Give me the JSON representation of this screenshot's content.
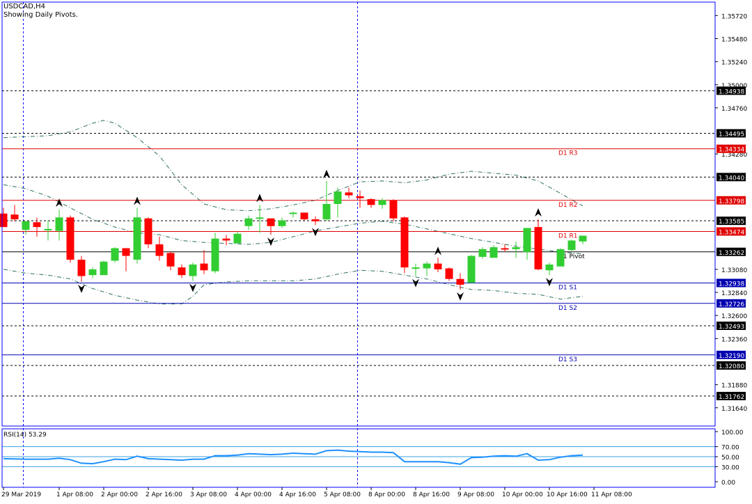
{
  "header": {
    "symbol": "USDCAD,H4",
    "subtitle": "Showing Daily Pivots."
  },
  "colors": {
    "bull": "#32cd32",
    "bear": "#ff0000",
    "wick": "#000000",
    "frame": "#0000ff",
    "resistance": "#e00000",
    "support": "#0000b0",
    "pivot": "#000000",
    "band": "#2f6f5f",
    "rsi": "#1e90ff",
    "rsi_levels": "#3aa0e0"
  },
  "price_axis": {
    "min": 1.3145,
    "max": 1.3586,
    "ticks": [
      "1.35720",
      "1.35480",
      "1.35240",
      "1.35000",
      "1.34760",
      "1.34280",
      "1.33080",
      "1.32840",
      "1.32600",
      "1.32360",
      "1.31880",
      "1.31640"
    ]
  },
  "time_axis": {
    "labels": [
      {
        "text": "29 Mar 2019",
        "bar": 0
      },
      {
        "text": "1 Apr 08:00",
        "bar": 5
      },
      {
        "text": "2 Apr 00:00",
        "bar": 9
      },
      {
        "text": "2 Apr 16:00",
        "bar": 13
      },
      {
        "text": "3 Apr 08:00",
        "bar": 17
      },
      {
        "text": "4 Apr 00:00",
        "bar": 21
      },
      {
        "text": "4 Apr 16:00",
        "bar": 25
      },
      {
        "text": "5 Apr 08:00",
        "bar": 29
      },
      {
        "text": "8 Apr 00:00",
        "bar": 33
      },
      {
        "text": "8 Apr 16:00",
        "bar": 37
      },
      {
        "text": "9 Apr 08:00",
        "bar": 41
      },
      {
        "text": "10 Apr 00:00",
        "bar": 45
      },
      {
        "text": "10 Apr 16:00",
        "bar": 49
      },
      {
        "text": "11 Apr 08:00",
        "bar": 53
      }
    ]
  },
  "chart_data": {
    "type": "candlestick",
    "title": "USDCAD,H4",
    "subtitle": "Showing Daily Pivots.",
    "ylim": [
      1.3145,
      1.3586
    ],
    "candles": [
      {
        "o": 1.3366,
        "h": 1.3372,
        "l": 1.3352,
        "c": 1.3352
      },
      {
        "o": 1.3365,
        "h": 1.3375,
        "l": 1.3358,
        "c": 1.336
      },
      {
        "o": 1.3349,
        "h": 1.3357,
        "l": 1.3344,
        "c": 1.3358
      },
      {
        "o": 1.3357,
        "h": 1.3362,
        "l": 1.3342,
        "c": 1.3352
      },
      {
        "o": 1.335,
        "h": 1.3359,
        "l": 1.3338,
        "c": 1.335
      },
      {
        "o": 1.3348,
        "h": 1.337,
        "l": 1.3338,
        "c": 1.3362
      },
      {
        "o": 1.3362,
        "h": 1.3364,
        "l": 1.3315,
        "c": 1.3318
      },
      {
        "o": 1.3318,
        "h": 1.3322,
        "l": 1.3295,
        "c": 1.3301
      },
      {
        "o": 1.3302,
        "h": 1.331,
        "l": 1.3299,
        "c": 1.3308
      },
      {
        "o": 1.3302,
        "h": 1.3317,
        "l": 1.3302,
        "c": 1.3316
      },
      {
        "o": 1.3317,
        "h": 1.3331,
        "l": 1.3315,
        "c": 1.333
      },
      {
        "o": 1.333,
        "h": 1.333,
        "l": 1.3306,
        "c": 1.3322
      },
      {
        "o": 1.3318,
        "h": 1.3372,
        "l": 1.3314,
        "c": 1.3362
      },
      {
        "o": 1.3361,
        "h": 1.3362,
        "l": 1.333,
        "c": 1.3334
      },
      {
        "o": 1.3334,
        "h": 1.3342,
        "l": 1.3317,
        "c": 1.3322
      },
      {
        "o": 1.3325,
        "h": 1.3326,
        "l": 1.3307,
        "c": 1.3311
      },
      {
        "o": 1.331,
        "h": 1.3313,
        "l": 1.3299,
        "c": 1.3302
      },
      {
        "o": 1.3301,
        "h": 1.3315,
        "l": 1.3296,
        "c": 1.3313
      },
      {
        "o": 1.3314,
        "h": 1.3328,
        "l": 1.3303,
        "c": 1.3307
      },
      {
        "o": 1.3306,
        "h": 1.3346,
        "l": 1.3304,
        "c": 1.334
      },
      {
        "o": 1.334,
        "h": 1.3344,
        "l": 1.3333,
        "c": 1.3338
      },
      {
        "o": 1.3335,
        "h": 1.3347,
        "l": 1.3335,
        "c": 1.3345
      },
      {
        "o": 1.3353,
        "h": 1.3364,
        "l": 1.3349,
        "c": 1.3361
      },
      {
        "o": 1.3362,
        "h": 1.3375,
        "l": 1.3346,
        "c": 1.3362
      },
      {
        "o": 1.3361,
        "h": 1.336,
        "l": 1.3344,
        "c": 1.3353
      },
      {
        "o": 1.3353,
        "h": 1.3362,
        "l": 1.3351,
        "c": 1.3359
      },
      {
        "o": 1.3366,
        "h": 1.3368,
        "l": 1.3362,
        "c": 1.3367
      },
      {
        "o": 1.3367,
        "h": 1.3367,
        "l": 1.3359,
        "c": 1.336
      },
      {
        "o": 1.336,
        "h": 1.3363,
        "l": 1.3354,
        "c": 1.3358
      },
      {
        "o": 1.336,
        "h": 1.34,
        "l": 1.3358,
        "c": 1.3376
      },
      {
        "o": 1.3376,
        "h": 1.3393,
        "l": 1.3362,
        "c": 1.3389
      },
      {
        "o": 1.3388,
        "h": 1.3393,
        "l": 1.3382,
        "c": 1.3385
      },
      {
        "o": 1.3384,
        "h": 1.339,
        "l": 1.3372,
        "c": 1.3382
      },
      {
        "o": 1.3381,
        "h": 1.3382,
        "l": 1.3372,
        "c": 1.3375
      },
      {
        "o": 1.3375,
        "h": 1.3382,
        "l": 1.3371,
        "c": 1.338
      },
      {
        "o": 1.338,
        "h": 1.3381,
        "l": 1.3358,
        "c": 1.3361
      },
      {
        "o": 1.3362,
        "h": 1.3363,
        "l": 1.3304,
        "c": 1.331
      },
      {
        "o": 1.3309,
        "h": 1.3314,
        "l": 1.3301,
        "c": 1.331
      },
      {
        "o": 1.3309,
        "h": 1.3316,
        "l": 1.3301,
        "c": 1.3314
      },
      {
        "o": 1.3314,
        "h": 1.332,
        "l": 1.3305,
        "c": 1.3308
      },
      {
        "o": 1.3309,
        "h": 1.331,
        "l": 1.3296,
        "c": 1.3298
      },
      {
        "o": 1.3298,
        "h": 1.3304,
        "l": 1.3287,
        "c": 1.3292
      },
      {
        "o": 1.3294,
        "h": 1.3323,
        "l": 1.3294,
        "c": 1.3322
      },
      {
        "o": 1.3321,
        "h": 1.3331,
        "l": 1.3319,
        "c": 1.3329
      },
      {
        "o": 1.332,
        "h": 1.3333,
        "l": 1.332,
        "c": 1.3331
      },
      {
        "o": 1.333,
        "h": 1.3334,
        "l": 1.3326,
        "c": 1.3329
      },
      {
        "o": 1.3329,
        "h": 1.3337,
        "l": 1.332,
        "c": 1.3331
      },
      {
        "o": 1.3326,
        "h": 1.3351,
        "l": 1.3318,
        "c": 1.3351
      },
      {
        "o": 1.3352,
        "h": 1.336,
        "l": 1.3307,
        "c": 1.3308
      },
      {
        "o": 1.3307,
        "h": 1.3315,
        "l": 1.3302,
        "c": 1.3313
      },
      {
        "o": 1.3311,
        "h": 1.333,
        "l": 1.3311,
        "c": 1.3329
      },
      {
        "o": 1.3328,
        "h": 1.3339,
        "l": 1.3327,
        "c": 1.3338
      },
      {
        "o": 1.3337,
        "h": 1.3343,
        "l": 1.3334,
        "c": 1.3343
      }
    ],
    "bands": {
      "upper": [
        [
          0,
          1.3445
        ],
        [
          4,
          1.3447
        ],
        [
          6,
          1.3451
        ],
        [
          8,
          1.346
        ],
        [
          9,
          1.3463
        ],
        [
          10,
          1.346
        ],
        [
          12,
          1.3445
        ],
        [
          14,
          1.3426
        ],
        [
          16,
          1.3396
        ],
        [
          18,
          1.3376
        ],
        [
          20,
          1.337
        ],
        [
          22,
          1.3369
        ],
        [
          24,
          1.3371
        ],
        [
          26,
          1.3375
        ],
        [
          28,
          1.338
        ],
        [
          30,
          1.339
        ],
        [
          32,
          1.3399
        ],
        [
          34,
          1.34
        ],
        [
          36,
          1.3398
        ],
        [
          38,
          1.3401
        ],
        [
          40,
          1.3407
        ],
        [
          42,
          1.341
        ],
        [
          44,
          1.3408
        ],
        [
          46,
          1.3406
        ],
        [
          48,
          1.34
        ],
        [
          50,
          1.3387
        ],
        [
          52,
          1.3374
        ]
      ],
      "lower": [
        [
          0,
          1.3308
        ],
        [
          2,
          1.3304
        ],
        [
          4,
          1.3302
        ],
        [
          6,
          1.3298
        ],
        [
          8,
          1.3288
        ],
        [
          10,
          1.3281
        ],
        [
          12,
          1.3276
        ],
        [
          14,
          1.3272
        ],
        [
          16,
          1.3272
        ],
        [
          17,
          1.328
        ],
        [
          18,
          1.3292
        ],
        [
          20,
          1.3295
        ],
        [
          22,
          1.3296
        ],
        [
          24,
          1.3296
        ],
        [
          26,
          1.3296
        ],
        [
          28,
          1.3298
        ],
        [
          30,
          1.3303
        ],
        [
          32,
          1.3307
        ],
        [
          34,
          1.3306
        ],
        [
          36,
          1.3302
        ],
        [
          38,
          1.3298
        ],
        [
          40,
          1.3292
        ],
        [
          42,
          1.3287
        ],
        [
          44,
          1.3286
        ],
        [
          46,
          1.3283
        ],
        [
          48,
          1.3282
        ],
        [
          50,
          1.3277
        ],
        [
          52,
          1.328
        ]
      ],
      "middle": [
        [
          0,
          1.3396
        ],
        [
          2,
          1.3392
        ],
        [
          4,
          1.3384
        ],
        [
          6,
          1.3372
        ],
        [
          8,
          1.336
        ],
        [
          10,
          1.3352
        ],
        [
          12,
          1.3346
        ],
        [
          14,
          1.3344
        ],
        [
          16,
          1.3338
        ],
        [
          18,
          1.3336
        ],
        [
          20,
          1.3335
        ],
        [
          22,
          1.3334
        ],
        [
          24,
          1.3336
        ],
        [
          26,
          1.3342
        ],
        [
          28,
          1.3348
        ],
        [
          30,
          1.3352
        ],
        [
          32,
          1.3356
        ],
        [
          34,
          1.3358
        ],
        [
          36,
          1.3355
        ],
        [
          38,
          1.335
        ],
        [
          40,
          1.3345
        ],
        [
          42,
          1.334
        ],
        [
          44,
          1.3336
        ],
        [
          46,
          1.3332
        ],
        [
          48,
          1.3329
        ],
        [
          50,
          1.3326
        ],
        [
          52,
          1.3324
        ]
      ]
    },
    "fractals": [
      {
        "bar": 5,
        "type": "up"
      },
      {
        "bar": 7,
        "type": "down"
      },
      {
        "bar": 12,
        "type": "up"
      },
      {
        "bar": 17,
        "type": "down"
      },
      {
        "bar": 23,
        "type": "up"
      },
      {
        "bar": 24,
        "type": "down"
      },
      {
        "bar": 28,
        "type": "down"
      },
      {
        "bar": 29,
        "type": "up"
      },
      {
        "bar": 37,
        "type": "down"
      },
      {
        "bar": 39,
        "type": "up"
      },
      {
        "bar": 41,
        "type": "down"
      },
      {
        "bar": 48,
        "type": "up"
      },
      {
        "bar": 49,
        "type": "down"
      }
    ],
    "pivot_lines": [
      {
        "label": "D1 R3",
        "value": "1.34334",
        "kind": "resistance"
      },
      {
        "label": "D1 R2",
        "value": "1.33798",
        "kind": "resistance"
      },
      {
        "label": "D1 R1",
        "value": "1.33474",
        "kind": "resistance"
      },
      {
        "label": "D1 Pivot",
        "value": "1.33262",
        "kind": "pivot"
      },
      {
        "label": "D1 S1",
        "value": "1.32938",
        "kind": "support"
      },
      {
        "label": "D1 S2",
        "value": "1.32726",
        "kind": "support"
      },
      {
        "label": "D1 S3",
        "value": "1.32190",
        "kind": "support"
      }
    ],
    "dashed_levels": [
      "1.34938",
      "1.34495",
      "1.34040",
      "1.33585",
      "1.32493",
      "1.32080",
      "1.31762"
    ],
    "rsi": {
      "title": "RSI(14) 53.29",
      "ticks": [
        "100.00",
        "70.00",
        "50.00",
        "30.00",
        "0.00"
      ],
      "levels": [
        70,
        50,
        30
      ],
      "values": [
        [
          0,
          46
        ],
        [
          2,
          45
        ],
        [
          4,
          45
        ],
        [
          5,
          47
        ],
        [
          6,
          44
        ],
        [
          7,
          37
        ],
        [
          8,
          36
        ],
        [
          9,
          40
        ],
        [
          10,
          45
        ],
        [
          11,
          44
        ],
        [
          12,
          51
        ],
        [
          13,
          46
        ],
        [
          14,
          45
        ],
        [
          15,
          44
        ],
        [
          16,
          43
        ],
        [
          17,
          45
        ],
        [
          18,
          45
        ],
        [
          19,
          52
        ],
        [
          20,
          52
        ],
        [
          21,
          53
        ],
        [
          22,
          56
        ],
        [
          23,
          55
        ],
        [
          24,
          54
        ],
        [
          25,
          55
        ],
        [
          26,
          57
        ],
        [
          27,
          56
        ],
        [
          28,
          55
        ],
        [
          29,
          62
        ],
        [
          30,
          63
        ],
        [
          31,
          61
        ],
        [
          32,
          60
        ],
        [
          33,
          59
        ],
        [
          34,
          59
        ],
        [
          35,
          58
        ],
        [
          36,
          40
        ],
        [
          37,
          40
        ],
        [
          38,
          40
        ],
        [
          39,
          40
        ],
        [
          40,
          38
        ],
        [
          41,
          35
        ],
        [
          42,
          48
        ],
        [
          43,
          49
        ],
        [
          44,
          51
        ],
        [
          45,
          52
        ],
        [
          46,
          51
        ],
        [
          47,
          56
        ],
        [
          48,
          43
        ],
        [
          49,
          44
        ],
        [
          50,
          49
        ],
        [
          51,
          52
        ],
        [
          52,
          53
        ]
      ]
    }
  }
}
